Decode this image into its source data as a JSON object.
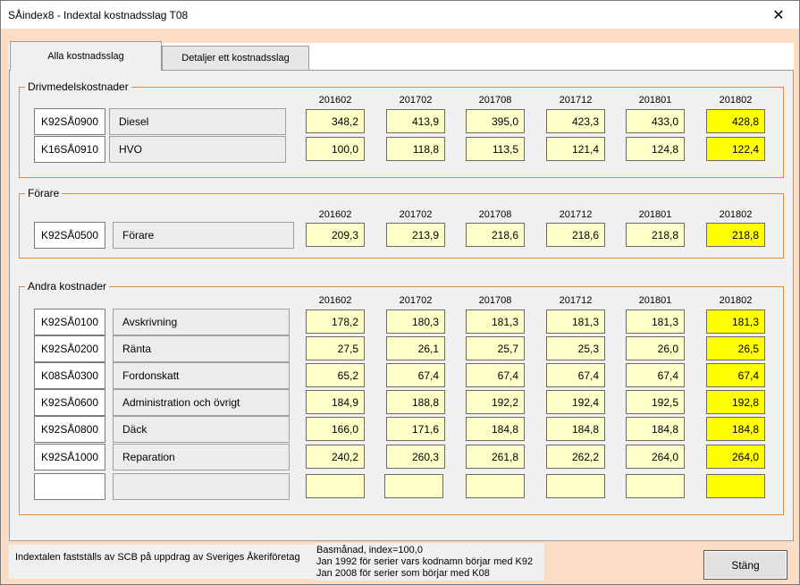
{
  "window": {
    "title": "SÅindex8 - Indextal kostnadsslag T08",
    "close_glyph": "✕"
  },
  "tabs": [
    {
      "label": "Alla kostnadsslag",
      "active": true
    },
    {
      "label": "Detaljer ett kostnadsslag",
      "active": false
    }
  ],
  "periods": [
    "201602",
    "201702",
    "201708",
    "201712",
    "201801",
    "201802"
  ],
  "groups": [
    {
      "title": "Drivmedelskostnader",
      "rows": [
        {
          "code": "K92SÅ0900",
          "name": "Diesel",
          "values": [
            "348,2",
            "413,9",
            "395,0",
            "423,3",
            "433,0",
            "428,8"
          ]
        },
        {
          "code": "K16SÅ0910",
          "name": "HVO",
          "values": [
            "100,0",
            "118,8",
            "113,5",
            "121,4",
            "124,8",
            "122,4"
          ]
        }
      ]
    },
    {
      "title": "Förare",
      "rows": [
        {
          "code": "K92SÅ0500",
          "name": "Förare",
          "values": [
            "209,3",
            "213,9",
            "218,6",
            "218,6",
            "218,8",
            "218,8"
          ]
        }
      ]
    },
    {
      "title": "Andra kostnader",
      "rows": [
        {
          "code": "K92SÅ0100",
          "name": "Avskrivning",
          "values": [
            "178,2",
            "180,3",
            "181,3",
            "181,3",
            "181,3",
            "181,3"
          ]
        },
        {
          "code": "K92SÅ0200",
          "name": "Ränta",
          "values": [
            "27,5",
            "26,1",
            "25,7",
            "25,3",
            "26,0",
            "26,5"
          ]
        },
        {
          "code": "K08SÅ0300",
          "name": "Fordonskatt",
          "values": [
            "65,2",
            "67,4",
            "67,4",
            "67,4",
            "67,4",
            "67,4"
          ]
        },
        {
          "code": "K92SÅ0600",
          "name": "Administration och övrigt",
          "values": [
            "184,9",
            "188,8",
            "192,2",
            "192,4",
            "192,5",
            "192,8"
          ]
        },
        {
          "code": "K92SÅ0800",
          "name": "Däck",
          "values": [
            "166,0",
            "171,6",
            "184,8",
            "184,8",
            "184,8",
            "184,8"
          ]
        },
        {
          "code": "K92SÅ1000",
          "name": "Reparation",
          "values": [
            "240,2",
            "260,3",
            "261,8",
            "262,2",
            "264,0",
            "264,0"
          ]
        },
        {
          "code": "",
          "name": "",
          "values": [
            "",
            "",
            "",
            "",
            "",
            ""
          ]
        }
      ]
    }
  ],
  "footer": {
    "info": "Indextalen fastställs av SCB på uppdrag av Sveriges Åkeriföretag",
    "notes": [
      "Basmånad, index=100,0",
      "Jan 1992 för serier vars kodnamn börjar med K92",
      "Jan 2008 för serier som börjar med K08"
    ],
    "close_label": "Stäng"
  },
  "colors": {
    "value_bg": "#ffffc8",
    "highlight_bg": "#ffff00",
    "group_border": "#e08a3c",
    "window_bg": "#fbdcc4"
  }
}
